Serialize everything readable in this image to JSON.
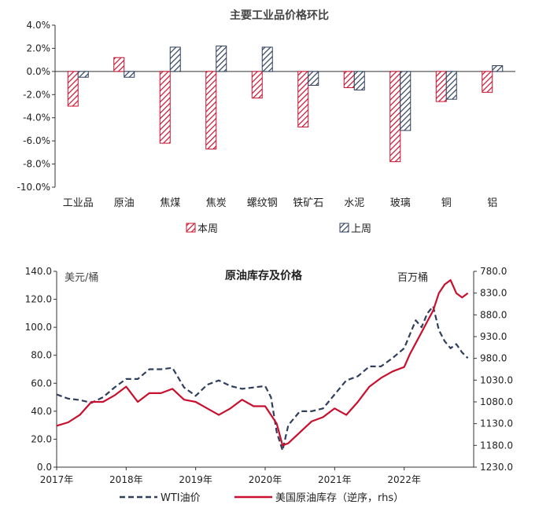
{
  "chart_data": [
    {
      "type": "bar",
      "title": "主要工业品价格环比",
      "categories": [
        "工业品",
        "原油",
        "焦煤",
        "焦炭",
        "螺纹钢",
        "铁矿石",
        "水泥",
        "玻璃",
        "铜",
        "铝"
      ],
      "series": [
        {
          "name": "本周",
          "values": [
            -3.0,
            1.2,
            -6.2,
            -6.7,
            -2.3,
            -4.8,
            -1.4,
            -7.8,
            -2.6,
            -1.8
          ],
          "color": "#c8102e"
        },
        {
          "name": "上周",
          "values": [
            -0.5,
            -0.5,
            2.1,
            2.2,
            2.1,
            -1.2,
            -1.6,
            -5.1,
            -2.4,
            0.5
          ],
          "color": "#2f3f5c"
        }
      ],
      "y_ticks": [
        "4.0%",
        "2.0%",
        "0.0%",
        "-2.0%",
        "-4.0%",
        "-6.0%",
        "-8.0%",
        "-10.0%"
      ],
      "ylim": [
        -10,
        4
      ],
      "legend_position": "bottom",
      "grid": false
    },
    {
      "type": "line",
      "title": "原油库存及价格",
      "ylabel": "美元/桶",
      "y2label": "百万桶",
      "x_ticks": [
        "2017年",
        "2018年",
        "2019年",
        "2020年",
        "2021年",
        "2022年"
      ],
      "y_ticks": [
        "140.0",
        "120.0",
        "100.0",
        "80.0",
        "60.0",
        "40.0",
        "20.0",
        "0.0"
      ],
      "y2_ticks": [
        "780.0",
        "830.0",
        "880.0",
        "930.0",
        "980.0",
        "1030.0",
        "1080.0",
        "1130.0",
        "1180.0",
        "1230.0"
      ],
      "ylim": [
        0,
        140
      ],
      "y2lim": [
        780,
        1230
      ],
      "y2_inverted": true,
      "xlim": [
        "2017-01",
        "2022-12"
      ],
      "legend_position": "bottom",
      "grid": false,
      "series": [
        {
          "name": "WTI油价",
          "axis": "left",
          "style": "dashed",
          "color": "#2f3f5c",
          "x": [
            "2017-01",
            "2017-03",
            "2017-05",
            "2017-07",
            "2017-09",
            "2017-11",
            "2018-01",
            "2018-03",
            "2018-05",
            "2018-07",
            "2018-09",
            "2018-11",
            "2019-01",
            "2019-03",
            "2019-05",
            "2019-07",
            "2019-09",
            "2019-11",
            "2020-01",
            "2020-02",
            "2020-03",
            "2020-04",
            "2020-05",
            "2020-07",
            "2020-09",
            "2020-11",
            "2021-01",
            "2021-03",
            "2021-05",
            "2021-07",
            "2021-09",
            "2021-11",
            "2022-01",
            "2022-02",
            "2022-03",
            "2022-04",
            "2022-05",
            "2022-06",
            "2022-07",
            "2022-08",
            "2022-09",
            "2022-10",
            "2022-11",
            "2022-12"
          ],
          "y": [
            52,
            49,
            48,
            46,
            50,
            57,
            63,
            63,
            70,
            70,
            71,
            57,
            51,
            59,
            62,
            58,
            56,
            57,
            58,
            50,
            25,
            12,
            30,
            40,
            40,
            42,
            52,
            62,
            65,
            72,
            72,
            78,
            85,
            95,
            105,
            100,
            110,
            115,
            98,
            90,
            85,
            88,
            82,
            78
          ]
        },
        {
          "name": "美国原油库存（逆序，rhs）",
          "axis": "right",
          "style": "solid",
          "color": "#c8102e",
          "x": [
            "2017-01",
            "2017-03",
            "2017-05",
            "2017-07",
            "2017-09",
            "2017-11",
            "2018-01",
            "2018-03",
            "2018-05",
            "2018-07",
            "2018-09",
            "2018-11",
            "2019-01",
            "2019-03",
            "2019-05",
            "2019-07",
            "2019-09",
            "2019-11",
            "2020-01",
            "2020-02",
            "2020-03",
            "2020-04",
            "2020-05",
            "2020-07",
            "2020-09",
            "2020-11",
            "2021-01",
            "2021-03",
            "2021-05",
            "2021-07",
            "2021-09",
            "2021-11",
            "2022-01",
            "2022-02",
            "2022-03",
            "2022-04",
            "2022-05",
            "2022-06",
            "2022-07",
            "2022-08",
            "2022-09",
            "2022-10",
            "2022-11",
            "2022-12"
          ],
          "y": [
            1135,
            1127,
            1110,
            1080,
            1080,
            1065,
            1045,
            1080,
            1060,
            1060,
            1050,
            1075,
            1080,
            1095,
            1110,
            1095,
            1075,
            1090,
            1090,
            1110,
            1130,
            1180,
            1175,
            1150,
            1125,
            1115,
            1095,
            1110,
            1080,
            1045,
            1025,
            1010,
            1000,
            970,
            945,
            920,
            895,
            870,
            830,
            810,
            800,
            830,
            840,
            830
          ]
        }
      ]
    }
  ]
}
